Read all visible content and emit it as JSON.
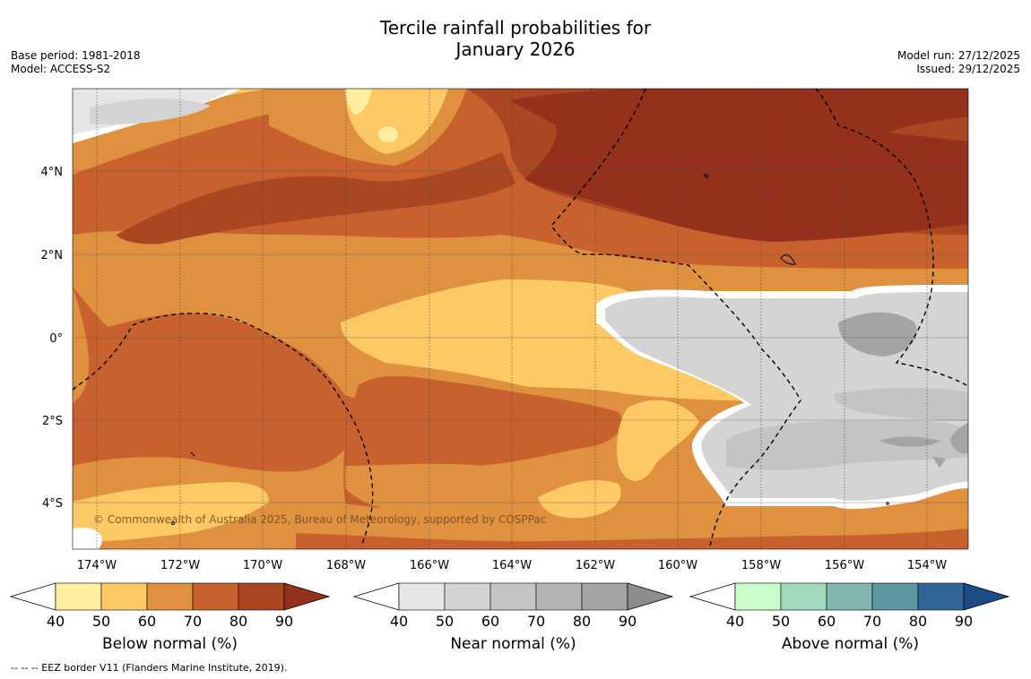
{
  "title": {
    "line1": "Tercile rainfall probabilities for",
    "line2": "January 2026"
  },
  "meta": {
    "base_period": "Base period: 1981-2018",
    "model": "Model: ACCESS-S2",
    "model_run": "Model run: 27/12/2025",
    "issued": "Issued: 29/12/2025"
  },
  "map": {
    "lon_labels": [
      "174°W",
      "172°W",
      "170°W",
      "168°W",
      "166°W",
      "164°W",
      "162°W",
      "160°W",
      "158°W",
      "156°W",
      "154°W"
    ],
    "lat_labels": [
      "4°N",
      "2°N",
      "0°",
      "2°S",
      "4°S"
    ],
    "copyright": "© Commonwealth of Australia 2025, Bureau of Meteorology, supported by COSPPac"
  },
  "colorbars": [
    {
      "name": "Below normal (%)",
      "ticks": [
        "40",
        "50",
        "60",
        "70",
        "80",
        "90"
      ],
      "colors": [
        "#ffeea0",
        "#fdc964",
        "#df9140",
        "#c8612e",
        "#aa4622",
        "#94301c"
      ]
    },
    {
      "name": "Near normal (%)",
      "ticks": [
        "40",
        "50",
        "60",
        "70",
        "80",
        "90"
      ],
      "colors": [
        "#e6e6e6",
        "#d4d4d4",
        "#c4c4c4",
        "#b4b4b4",
        "#a4a4a4",
        "#8c8c8c"
      ]
    },
    {
      "name": "Above normal (%)",
      "ticks": [
        "40",
        "50",
        "60",
        "70",
        "80",
        "90"
      ],
      "colors": [
        "#c8fcc8",
        "#a2d8bc",
        "#82b6b0",
        "#5e96a2",
        "#336698",
        "#1a4c86"
      ]
    }
  ],
  "footnote": "-- -- -- EEZ border V11 (Flanders Marine Institute, 2019)."
}
